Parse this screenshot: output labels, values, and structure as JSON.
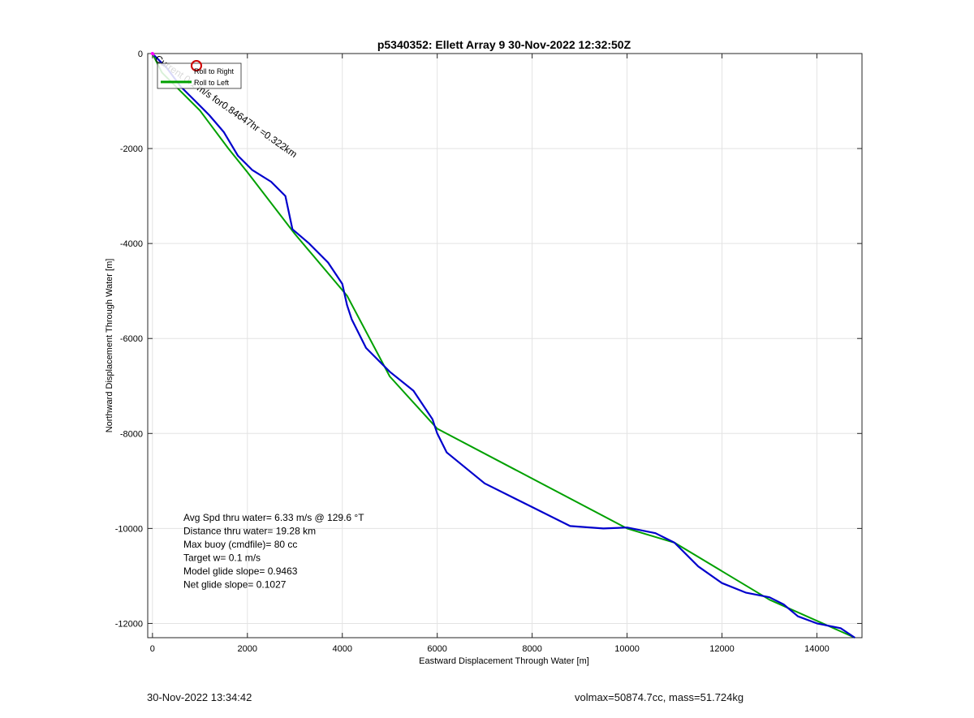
{
  "chart_data": {
    "type": "line",
    "title": "p5340352: Ellett Array 9 30-Nov-2022 12:32:50Z",
    "xlabel": "Eastward Displacement Through Water [m]",
    "ylabel": "Northward Displacement Through Water [m]",
    "xlim": [
      -100,
      14950
    ],
    "ylim": [
      -12300,
      0
    ],
    "xticks": [
      0,
      2000,
      4000,
      6000,
      8000,
      10000,
      12000,
      14000
    ],
    "xtick_labels": [
      "0",
      "2000",
      "4000",
      "6000",
      "8000",
      "10000",
      "12000",
      "14000"
    ],
    "yticks": [
      0,
      -2000,
      -4000,
      -6000,
      -8000,
      -10000,
      -12000
    ],
    "ytick_labels": [
      "0",
      "-2000",
      "-4000",
      "-6000",
      "-8000",
      "-10000",
      "-12000"
    ],
    "grid": true,
    "legend": {
      "placement": "top-left",
      "entries": [
        {
          "label": "Roll to Right",
          "color": "#cc0000",
          "marker": "circle"
        },
        {
          "label": "Roll to Left",
          "color": "#00a000",
          "marker": "line"
        }
      ]
    },
    "series": [
      {
        "color": "#00a000",
        "x": [
          0,
          200,
          1000,
          1600,
          2000,
          3000,
          4100,
          5000,
          6000,
          10000,
          11000,
          13000,
          14800
        ],
        "y": [
          0,
          -400,
          -1200,
          -2000,
          -2500,
          -3800,
          -5100,
          -6800,
          -7900,
          -10000,
          -10300,
          -11500,
          -12300
        ]
      },
      {
        "color": "#0000cc",
        "x": [
          0,
          300,
          600,
          900,
          1200,
          1500,
          1800,
          2100,
          2500,
          2800,
          2950,
          3300,
          3700,
          4000,
          4100,
          4200,
          4500,
          5000,
          5500,
          5900,
          6000,
          6200,
          7000,
          8000,
          8800,
          9500,
          10000,
          10600,
          11000,
          11500,
          12000,
          12500,
          13000,
          13300,
          13600,
          14000,
          14500,
          14800
        ],
        "y": [
          0,
          -300,
          -700,
          -1000,
          -1300,
          -1650,
          -2150,
          -2450,
          -2700,
          -3000,
          -3700,
          -4000,
          -4400,
          -4850,
          -5300,
          -5600,
          -6200,
          -6700,
          -7100,
          -7700,
          -8000,
          -8400,
          -9050,
          -9550,
          -9950,
          -10000,
          -9980,
          -10100,
          -10300,
          -10800,
          -11150,
          -11350,
          -11450,
          -11600,
          -11850,
          -12000,
          -12100,
          -12300
        ]
      }
    ],
    "annotations": {
      "current": "Current 0.1 m/s for0.84647hr =0.322km",
      "current_arrow_color": "#ff00ff",
      "stats": [
        "Avg Spd thru water=  6.33 m/s @ 129.6 °T",
        "Distance thru water= 19.28 km",
        "Max buoy (cmdfile)= 80 cc",
        "Target w= 0.1 m/s",
        "Model glide slope= 0.9463",
        "Net glide slope= 0.1027"
      ]
    }
  },
  "footer": {
    "left": "30-Nov-2022 13:34:42",
    "right": "volmax=50874.7cc, mass=51.724kg"
  }
}
